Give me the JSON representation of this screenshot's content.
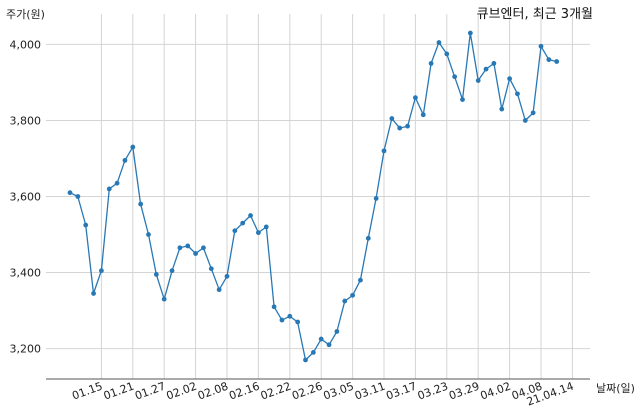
{
  "chart_data": {
    "type": "line",
    "title": "큐브엔터, 최근 3개월",
    "xlabel": "날짜(일)",
    "ylabel": "주가(원)",
    "ylim": [
      3120,
      4080
    ],
    "yticks": [
      3200,
      3400,
      3600,
      3800,
      4000
    ],
    "ytick_labels": [
      "3,200",
      "3,400",
      "3,600",
      "3,800",
      "4,000"
    ],
    "xtick_labels": [
      "01.15",
      "01.21",
      "01.27",
      "02.02",
      "02.08",
      "02.16",
      "02.22",
      "02.26",
      "03.05",
      "03.11",
      "03.17",
      "03.23",
      "03.29",
      "04.02",
      "04.08",
      "21.04.14"
    ],
    "xtick_indices": [
      4,
      8,
      12,
      16,
      20,
      24,
      28,
      32,
      36,
      40,
      44,
      48,
      52,
      56,
      60,
      64
    ],
    "grid": true,
    "color": "#2878b5",
    "series": [
      {
        "values": [
          3610,
          3600,
          3525,
          3345,
          3405,
          3620,
          3635,
          3695,
          3730,
          3580,
          3500,
          3395,
          3330,
          3405,
          3465,
          3470,
          3450,
          3465,
          3410,
          3355,
          3390,
          3510,
          3530,
          3550,
          3505,
          3520,
          3310,
          3275,
          3285,
          3270,
          3170,
          3190,
          3225,
          3210,
          3245,
          3325,
          3340,
          3380,
          3490,
          3595,
          3720,
          3805,
          3780,
          3785,
          3860,
          3815,
          3950,
          4005,
          3975,
          3915,
          3855,
          4030,
          3905,
          3935,
          3950,
          3830,
          3910,
          3870,
          3800,
          3820,
          3995,
          3960,
          3955
        ]
      }
    ]
  }
}
